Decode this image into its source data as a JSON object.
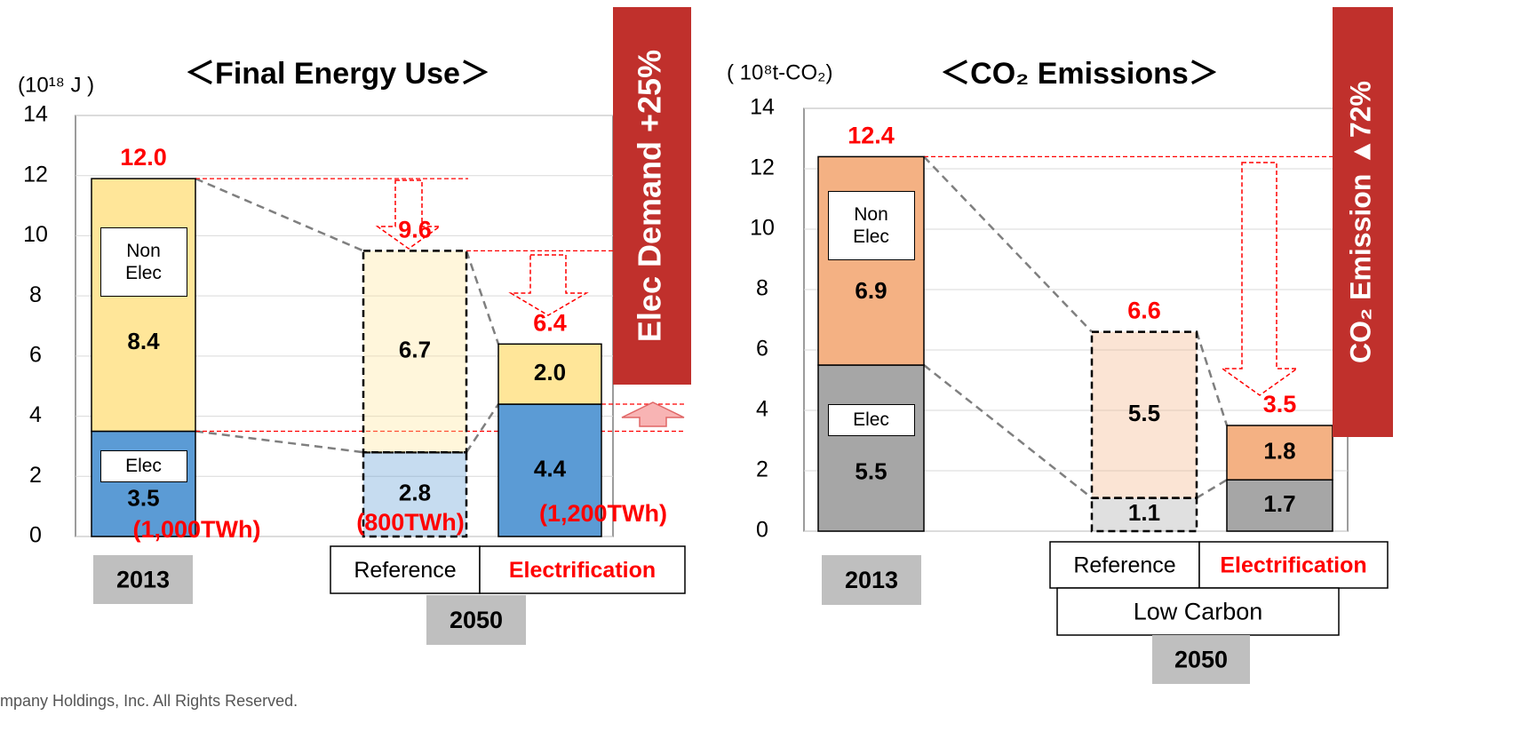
{
  "footer": "mpany Holdings, Inc.  All Rights Reserved.",
  "chart_data": [
    {
      "type": "bar",
      "stacked": true,
      "title": "＜Final Energy Use＞",
      "unit_label": "(10¹⁸ J )",
      "categories": [
        "2013",
        "Reference",
        "Electrification"
      ],
      "category_colors": [
        "#000000",
        "#000000",
        "#ff0000"
      ],
      "group_labels": [
        "2050"
      ],
      "dashed": [
        false,
        true,
        false
      ],
      "series": [
        {
          "name": "Elec",
          "color": "#5b9bd5",
          "values": [
            3.5,
            2.8,
            4.4
          ],
          "value_labels": [
            "3.5",
            "2.8",
            "4.4"
          ]
        },
        {
          "name": "Non Elec",
          "color": "#ffe699",
          "values": [
            8.4,
            6.7,
            2.0
          ],
          "value_labels": [
            "8.4",
            "6.7",
            "2.0"
          ]
        }
      ],
      "total_labels": [
        "12.0",
        "9.6",
        "6.4"
      ],
      "category_notes": [
        "(1,000TWh)",
        "(800TWh)",
        "(1,200TWh)"
      ],
      "callout": "Elec Demand +25%",
      "ylim": [
        0,
        14
      ],
      "yticks": [
        0,
        2,
        4,
        6,
        8,
        10,
        12,
        14
      ],
      "grid": true
    },
    {
      "type": "bar",
      "stacked": true,
      "title": "＜CO₂ Emissions＞",
      "unit_label": "( 10⁸t-CO₂)",
      "categories": [
        "2013",
        "Reference",
        "Electrification"
      ],
      "category_colors": [
        "#000000",
        "#000000",
        "#ff0000"
      ],
      "group_labels": [
        "Low Carbon",
        "2050"
      ],
      "dashed": [
        false,
        true,
        false
      ],
      "series": [
        {
          "name": "Elec",
          "color": "#a6a6a6",
          "values": [
            5.5,
            1.1,
            1.7
          ],
          "value_labels": [
            "5.5",
            "1.1",
            "1.7"
          ]
        },
        {
          "name": "Non Elec",
          "color": "#f4b183",
          "values": [
            6.9,
            5.5,
            1.8
          ],
          "value_labels": [
            "6.9",
            "5.5",
            "1.8"
          ]
        }
      ],
      "total_labels": [
        "12.4",
        "6.6",
        "3.5"
      ],
      "callout": "CO₂ Emission ▲72%",
      "ylim": [
        0,
        14
      ],
      "yticks": [
        0,
        2,
        4,
        6,
        8,
        10,
        12,
        14
      ],
      "grid": true
    }
  ]
}
